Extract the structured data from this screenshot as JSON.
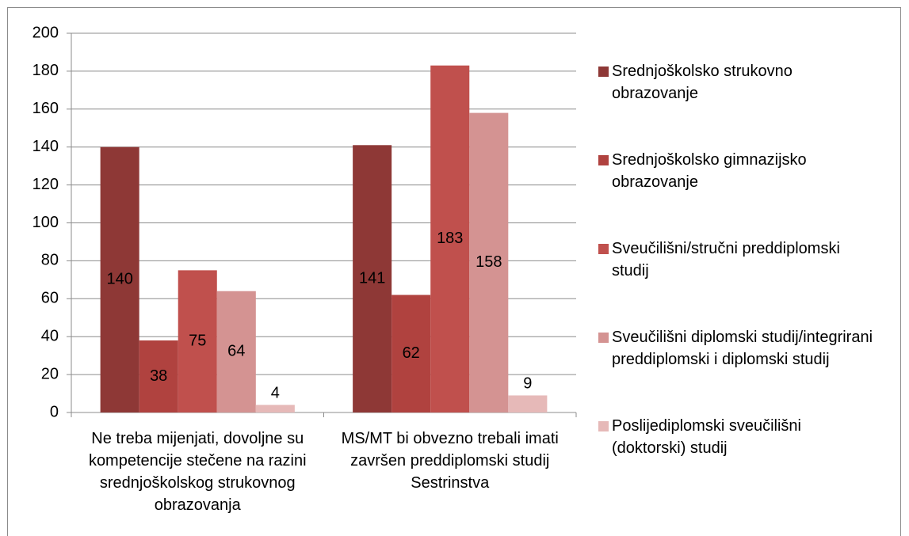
{
  "chart_data": {
    "type": "bar",
    "categories": [
      "Ne treba mijenjati, dovoljne su kompetencije stečene na razini srednjoškolskog strukovnog obrazovanja",
      "MS/MT bi obvezno trebali imati završen preddiplomski studij Sestrinstva"
    ],
    "series": [
      {
        "name": "Srednjoškolsko strukovno obrazovanje",
        "color": "#8e3836",
        "values": [
          140,
          141
        ]
      },
      {
        "name": "Srednjoškolsko gimnazijsko obrazovanje",
        "color": "#b0423f",
        "values": [
          38,
          62
        ]
      },
      {
        "name": "Sveučilišni/stručni preddiplomski studij",
        "color": "#c0504d",
        "values": [
          75,
          183
        ]
      },
      {
        "name": "Sveučilišni diplomski studij/integrirani preddiplomski i diplomski studij",
        "color": "#d49392",
        "values": [
          64,
          158
        ]
      },
      {
        "name": "Poslijediplomski sveučilišni (doktorski) studij",
        "color": "#e6b9b8",
        "values": [
          4,
          9
        ]
      }
    ],
    "ylim": [
      0,
      200
    ],
    "yticks": [
      0,
      20,
      40,
      60,
      80,
      100,
      120,
      140,
      160,
      180,
      200
    ],
    "grid": true,
    "legend": "right"
  }
}
